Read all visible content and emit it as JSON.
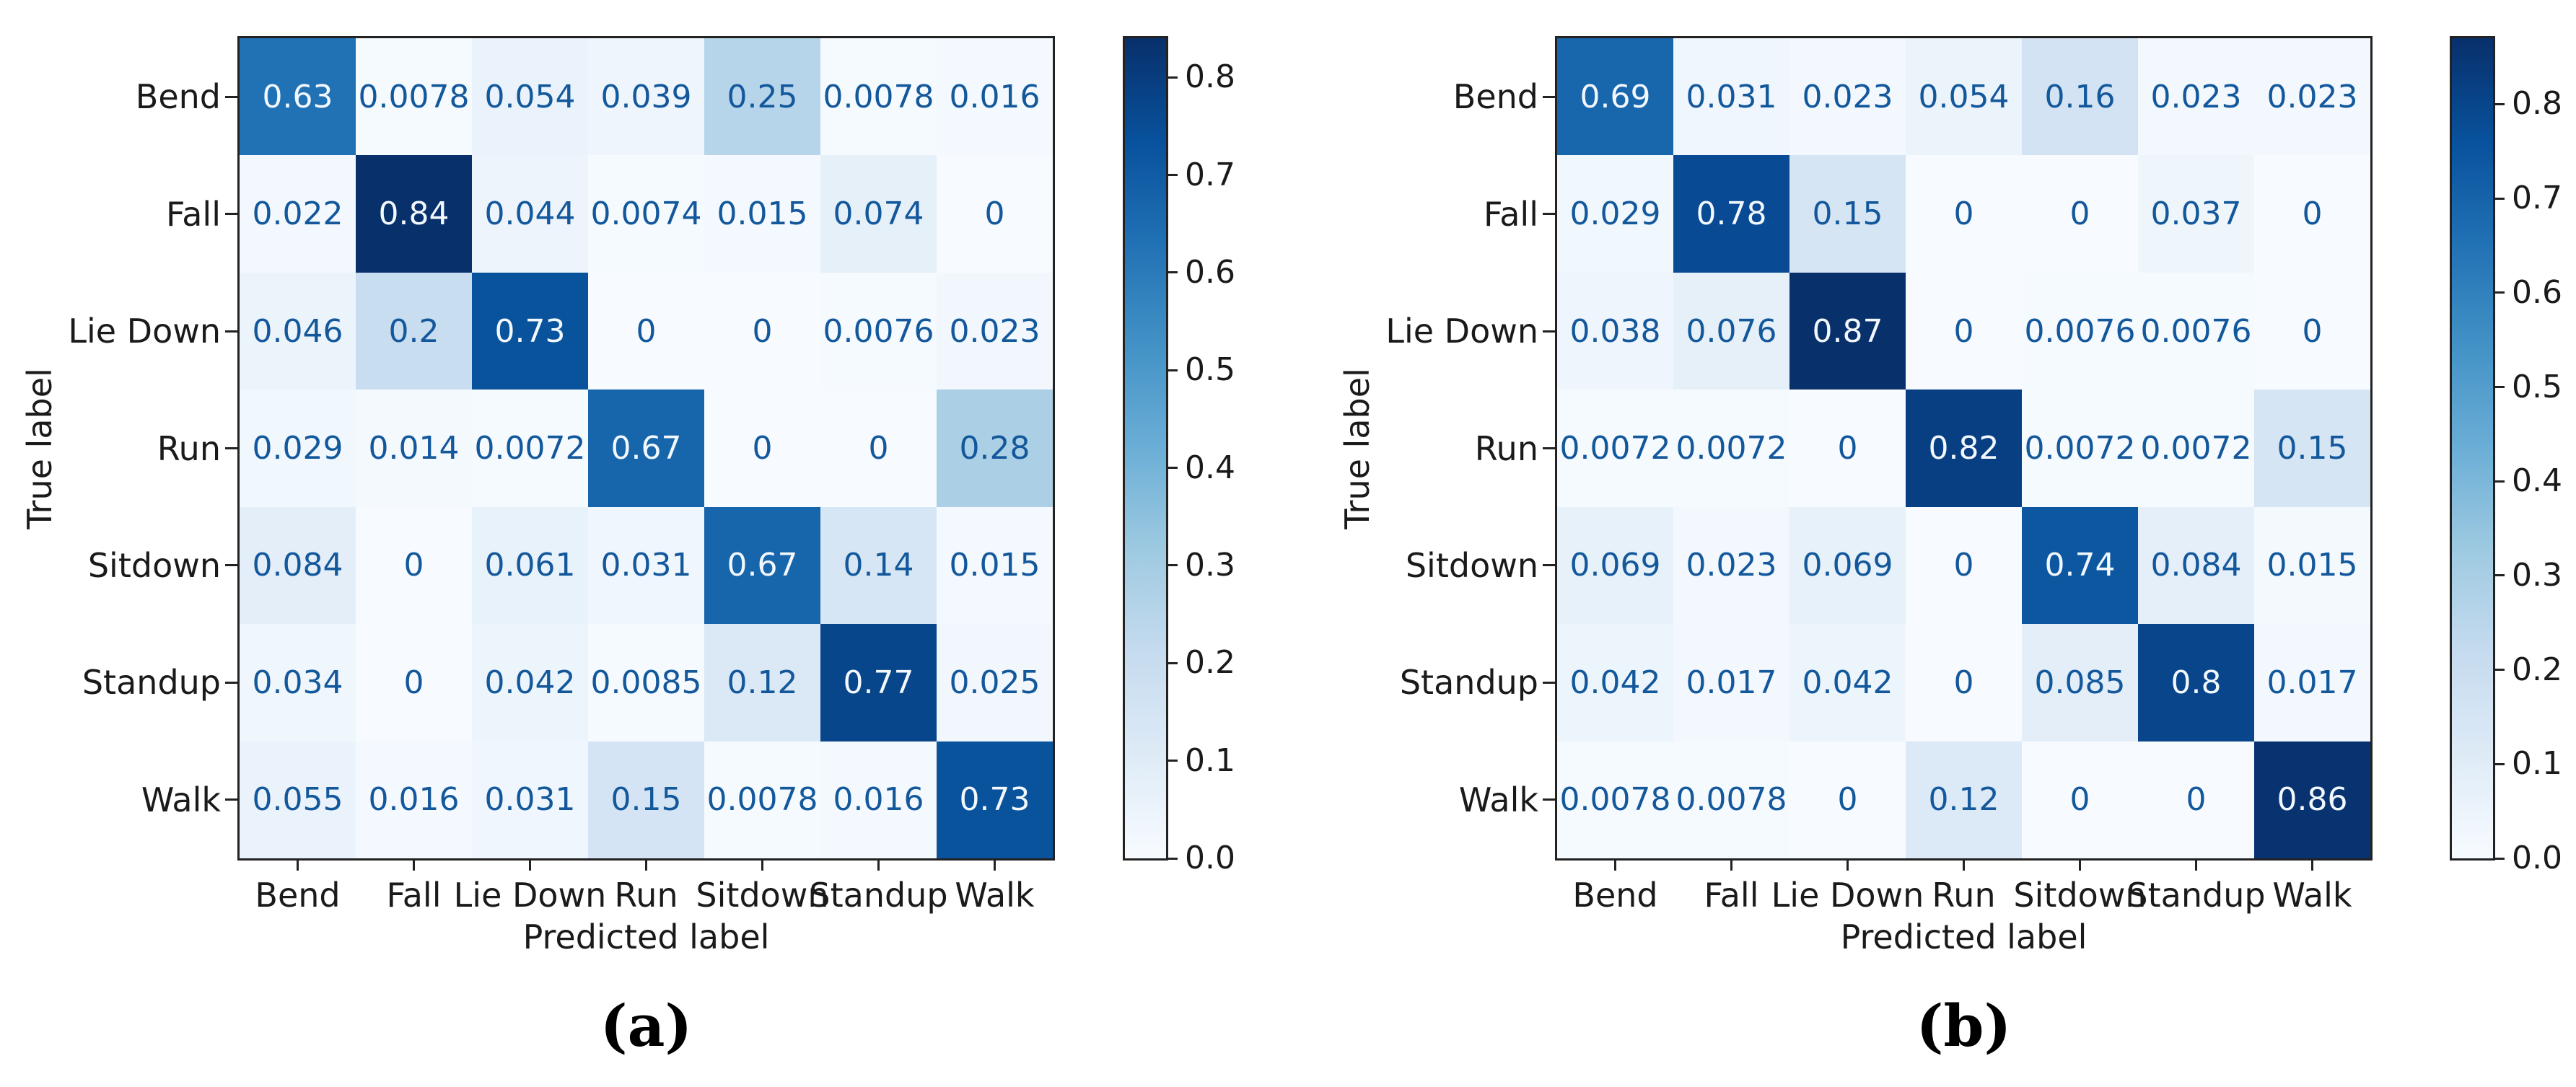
{
  "figure": {
    "description": "Two normalized confusion matrices, panels (a) and (b), with Blues colormap and colorbars",
    "colors": {
      "cell_text_dark": "#14589c",
      "cell_text_light": "#f2f8fd",
      "axis_text": "#1a1a1a",
      "spine": "#222222",
      "colormap_anchors": [
        "#f7fbff",
        "#deebf7",
        "#c6dbef",
        "#9ecae1",
        "#6baed6",
        "#4292c6",
        "#2171b5",
        "#08519c",
        "#08306b"
      ]
    },
    "panels": [
      {
        "caption": "(a)",
        "xlabel": "Predicted label",
        "ylabel": "True label",
        "labels": [
          "Bend",
          "Fall",
          "Lie Down",
          "Run",
          "Sitdown",
          "Standup",
          "Walk"
        ],
        "vmax": 0.84,
        "rows": [
          [
            "0.63",
            "0.0078",
            "0.054",
            "0.039",
            "0.25",
            "0.0078",
            "0.016"
          ],
          [
            "0.022",
            "0.84",
            "0.044",
            "0.0074",
            "0.015",
            "0.074",
            "0"
          ],
          [
            "0.046",
            "0.2",
            "0.73",
            "0",
            "0",
            "0.0076",
            "0.023"
          ],
          [
            "0.029",
            "0.014",
            "0.0072",
            "0.67",
            "0",
            "0",
            "0.28"
          ],
          [
            "0.084",
            "0",
            "0.061",
            "0.031",
            "0.67",
            "0.14",
            "0.015"
          ],
          [
            "0.034",
            "0",
            "0.042",
            "0.0085",
            "0.12",
            "0.77",
            "0.025"
          ],
          [
            "0.055",
            "0.016",
            "0.031",
            "0.15",
            "0.0078",
            "0.016",
            "0.73"
          ]
        ],
        "colorbar_tick_labels": [
          "0.8",
          "0.7",
          "0.6",
          "0.5",
          "0.4",
          "0.3",
          "0.2",
          "0.1",
          "0.0"
        ]
      },
      {
        "caption": "(b)",
        "xlabel": "Predicted label",
        "ylabel": "True label",
        "labels": [
          "Bend",
          "Fall",
          "Lie Down",
          "Run",
          "Sitdown",
          "Standup",
          "Walk"
        ],
        "vmax": 0.87,
        "rows": [
          [
            "0.69",
            "0.031",
            "0.023",
            "0.054",
            "0.16",
            "0.023",
            "0.023"
          ],
          [
            "0.029",
            "0.78",
            "0.15",
            "0",
            "0",
            "0.037",
            "0"
          ],
          [
            "0.038",
            "0.076",
            "0.87",
            "0",
            "0.0076",
            "0.0076",
            "0"
          ],
          [
            "0.0072",
            "0.0072",
            "0",
            "0.82",
            "0.0072",
            "0.0072",
            "0.15"
          ],
          [
            "0.069",
            "0.023",
            "0.069",
            "0",
            "0.74",
            "0.084",
            "0.015"
          ],
          [
            "0.042",
            "0.017",
            "0.042",
            "0",
            "0.085",
            "0.8",
            "0.017"
          ],
          [
            "0.0078",
            "0.0078",
            "0",
            "0.12",
            "0",
            "0",
            "0.86"
          ]
        ],
        "colorbar_tick_labels": [
          "0.8",
          "0.7",
          "0.6",
          "0.5",
          "0.4",
          "0.3",
          "0.2",
          "0.1",
          "0.0"
        ]
      }
    ]
  },
  "chart_data": [
    {
      "type": "heatmap",
      "subtype": "confusion-matrix",
      "title": "(a)",
      "xlabel": "Predicted label",
      "ylabel": "True label",
      "x_labels": [
        "Bend",
        "Fall",
        "Lie Down",
        "Run",
        "Sitdown",
        "Standup",
        "Walk"
      ],
      "y_labels": [
        "Bend",
        "Fall",
        "Lie Down",
        "Run",
        "Sitdown",
        "Standup",
        "Walk"
      ],
      "matrix": [
        [
          0.63,
          0.0078,
          0.054,
          0.039,
          0.25,
          0.0078,
          0.016
        ],
        [
          0.022,
          0.84,
          0.044,
          0.0074,
          0.015,
          0.074,
          0
        ],
        [
          0.046,
          0.2,
          0.73,
          0,
          0,
          0.0076,
          0.023
        ],
        [
          0.029,
          0.014,
          0.0072,
          0.67,
          0,
          0,
          0.28
        ],
        [
          0.084,
          0,
          0.061,
          0.031,
          0.67,
          0.14,
          0.015
        ],
        [
          0.034,
          0,
          0.042,
          0.0085,
          0.12,
          0.77,
          0.025
        ],
        [
          0.055,
          0.016,
          0.031,
          0.15,
          0.0078,
          0.016,
          0.73
        ]
      ],
      "colormap": "Blues",
      "vmin": 0.0,
      "vmax": 0.84,
      "colorbar_ticks": [
        0.0,
        0.1,
        0.2,
        0.3,
        0.4,
        0.5,
        0.6,
        0.7,
        0.8
      ],
      "legend_position": "right-colorbar",
      "grid": false
    },
    {
      "type": "heatmap",
      "subtype": "confusion-matrix",
      "title": "(b)",
      "xlabel": "Predicted label",
      "ylabel": "True label",
      "x_labels": [
        "Bend",
        "Fall",
        "Lie Down",
        "Run",
        "Sitdown",
        "Standup",
        "Walk"
      ],
      "y_labels": [
        "Bend",
        "Fall",
        "Lie Down",
        "Run",
        "Sitdown",
        "Standup",
        "Walk"
      ],
      "matrix": [
        [
          0.69,
          0.031,
          0.023,
          0.054,
          0.16,
          0.023,
          0.023
        ],
        [
          0.029,
          0.78,
          0.15,
          0,
          0,
          0.037,
          0
        ],
        [
          0.038,
          0.076,
          0.87,
          0,
          0.0076,
          0.0076,
          0
        ],
        [
          0.0072,
          0.0072,
          0,
          0.82,
          0.0072,
          0.0072,
          0.15
        ],
        [
          0.069,
          0.023,
          0.069,
          0,
          0.74,
          0.084,
          0.015
        ],
        [
          0.042,
          0.017,
          0.042,
          0,
          0.085,
          0.8,
          0.017
        ],
        [
          0.0078,
          0.0078,
          0,
          0.12,
          0,
          0,
          0.86
        ]
      ],
      "colormap": "Blues",
      "vmin": 0.0,
      "vmax": 0.87,
      "colorbar_ticks": [
        0.0,
        0.1,
        0.2,
        0.3,
        0.4,
        0.5,
        0.6,
        0.7,
        0.8
      ],
      "legend_position": "right-colorbar",
      "grid": false
    }
  ]
}
